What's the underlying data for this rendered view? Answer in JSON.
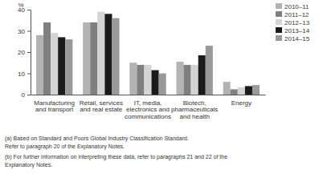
{
  "chart_data": {
    "type": "bar",
    "y_label": "%",
    "categories": [
      "Manufacturing and transport",
      "Retail, services and real estate",
      "IT, media, electronics and communications",
      "Biotech, pharmaceuticals and health",
      "Energy"
    ],
    "series": [
      {
        "name": "2010–11",
        "color": "#b3b3b3",
        "values": [
          28,
          34,
          15,
          15.5,
          6
        ]
      },
      {
        "name": "2011–12",
        "color": "#7f7f7f",
        "values": [
          34,
          34,
          14,
          14,
          2.5
        ]
      },
      {
        "name": "2012–13",
        "color": "#d4d4d4",
        "values": [
          29,
          39,
          14,
          14,
          3.5
        ]
      },
      {
        "name": "2013–14",
        "color": "#1a1a1a",
        "values": [
          27,
          38,
          11.5,
          18.5,
          4
        ]
      },
      {
        "name": "2014–15",
        "color": "#999999",
        "values": [
          26,
          36,
          10,
          23,
          4.5
        ]
      }
    ],
    "ylim": [
      0,
      40
    ],
    "yticks": [
      0,
      10,
      20,
      30,
      40
    ],
    "grid": false,
    "legend": "upper right",
    "annotations": [
      "(a) Based on Standard and Poors Global Industry Classification Standard.",
      "Refer to paragraph 20 of the Explanatory Notes.",
      "(b) For further information on interpreting these data, refer to paragraphs 21 and 22 of the",
      "Explanatory Notes."
    ]
  }
}
